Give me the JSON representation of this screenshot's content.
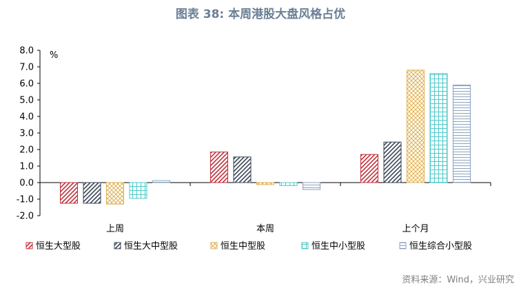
{
  "title": "图表 38: 本周港股大盘风格占优",
  "source": "资料来源：Wind，兴业研究",
  "chart_data": {
    "type": "bar",
    "unit": "%",
    "categories": [
      "上周",
      "本周",
      "上个月"
    ],
    "ylim": [
      -2.0,
      8.0
    ],
    "yticks": [
      "8.0",
      "7.0",
      "6.0",
      "5.0",
      "4.0",
      "3.0",
      "2.0",
      "1.0",
      "0.0",
      "-1.0",
      "-2.0"
    ],
    "legend_position": "bottom",
    "series": [
      {
        "name": "恒生大型股",
        "color": "#c0303a",
        "pattern": "diag-right",
        "values": [
          -1.25,
          1.85,
          1.7
        ]
      },
      {
        "name": "恒生大中型股",
        "color": "#3a4656",
        "pattern": "diag-right",
        "values": [
          -1.25,
          1.55,
          2.45
        ]
      },
      {
        "name": "恒生中型股",
        "color": "#e0b050",
        "pattern": "crosshatch",
        "values": [
          -1.3,
          -0.12,
          6.8
        ]
      },
      {
        "name": "恒生中小型股",
        "color": "#4cc8c8",
        "pattern": "grid",
        "values": [
          -0.95,
          -0.18,
          6.6
        ]
      },
      {
        "name": "恒生综合小型股",
        "color": "#8aa2bd",
        "pattern": "hlines",
        "values": [
          0.12,
          -0.42,
          5.9
        ]
      }
    ]
  }
}
